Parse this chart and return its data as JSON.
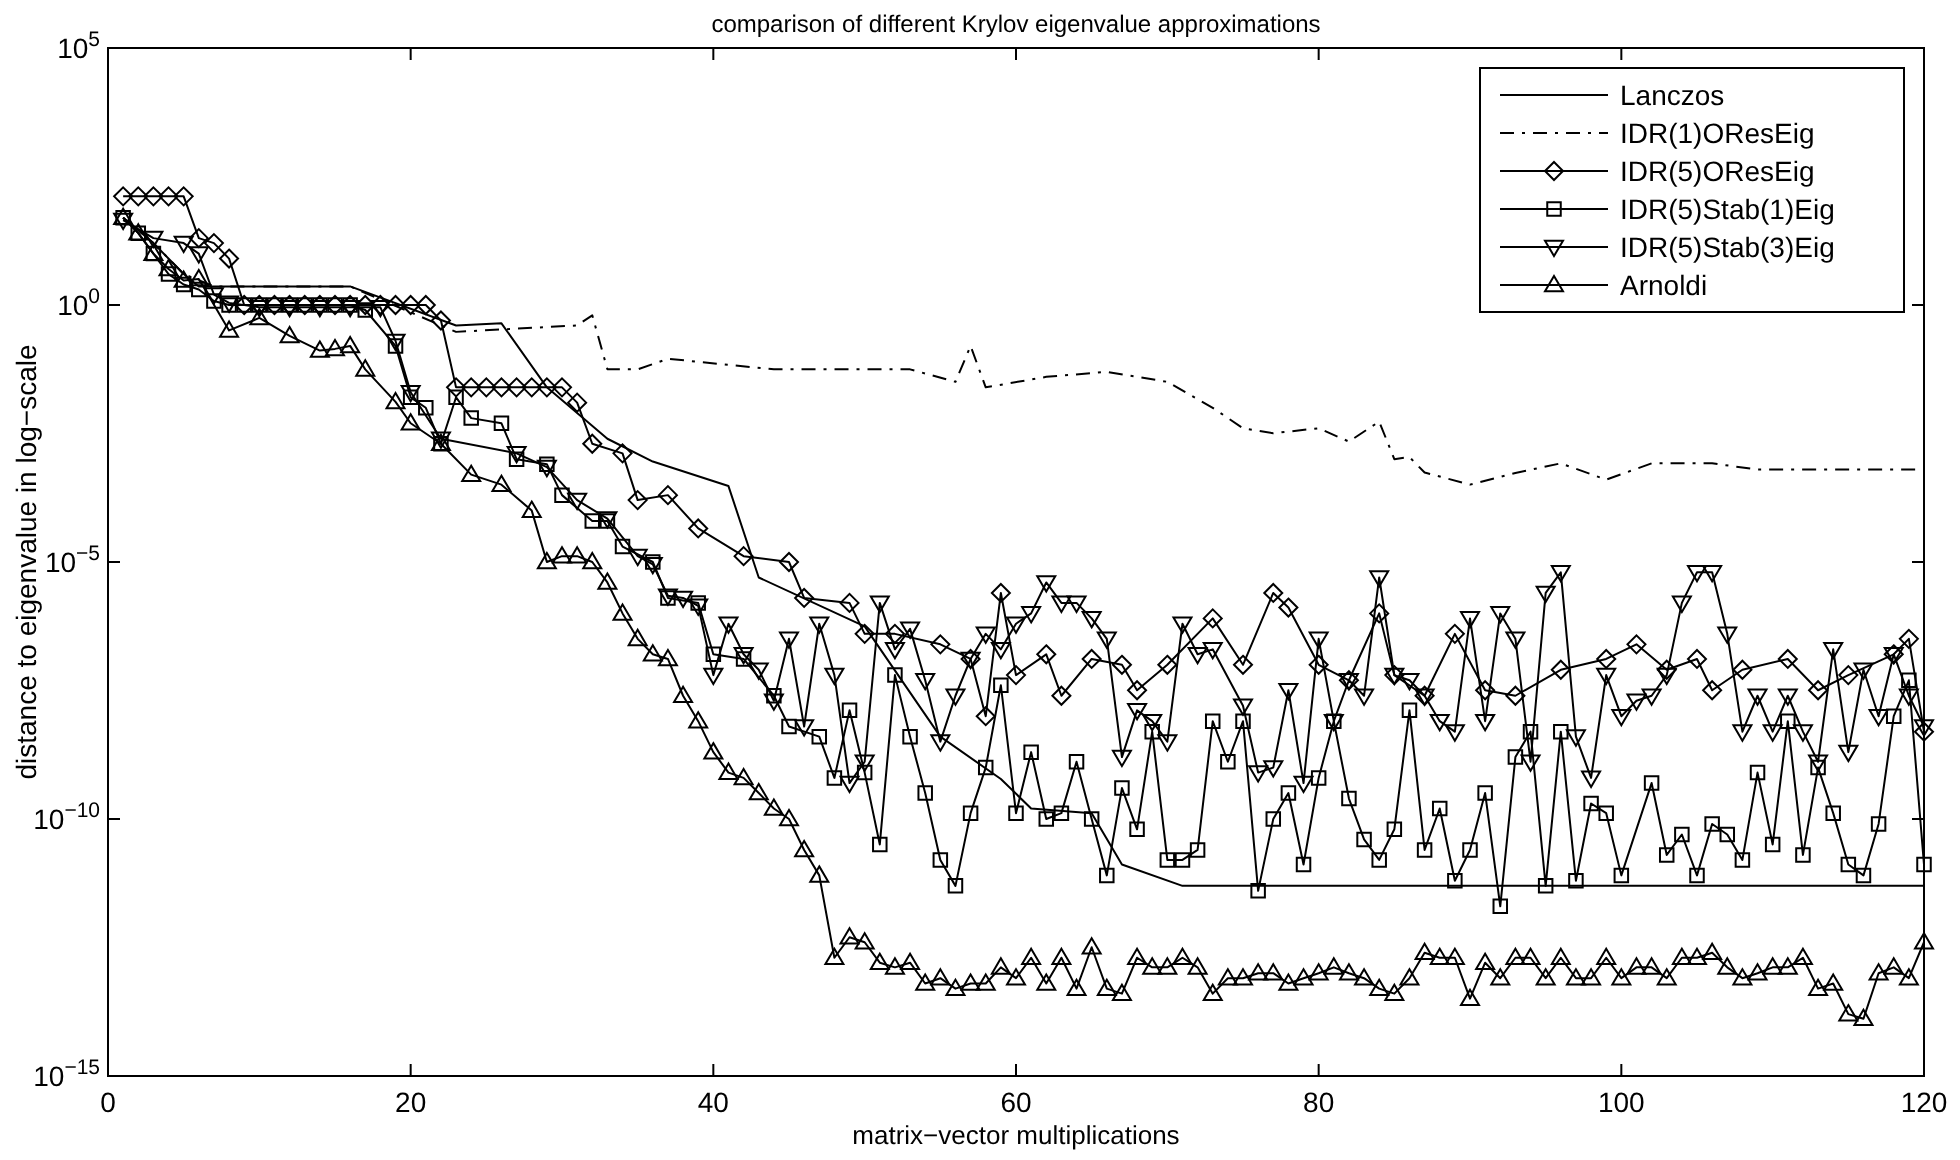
{
  "chart_data": {
    "type": "line",
    "title": "comparison of different Krylov eigenvalue approximations",
    "xlabel": "matrix−vector multiplications",
    "ylabel": "distance to eigenvalue in log−scale",
    "xlim": [
      0,
      120
    ],
    "xticks": [
      0,
      20,
      40,
      60,
      80,
      100,
      120
    ],
    "ylim": [
      1e-15,
      100000
    ],
    "yticks": [
      {
        "value": 1e-15,
        "label": "10$^{−15}$"
      },
      {
        "value": 1e-10,
        "label": "10$^{−10}$"
      },
      {
        "value": 1e-05,
        "label": "10$^{−5}$"
      },
      {
        "value": 1,
        "label": "10$^{0}$"
      },
      {
        "value": 100000,
        "label": "10$^{5}$"
      }
    ],
    "log": "y",
    "grid": false,
    "legend": "top right",
    "series": [
      {
        "name": "Lanczos",
        "color": "#000000",
        "marker": "none",
        "line_style": "solid",
        "x": [
          1,
          3,
          5,
          6,
          16,
          23,
          26,
          29,
          33,
          36,
          41,
          43,
          50,
          55,
          59,
          61,
          65,
          67,
          71,
          120
        ],
        "values": [
          50,
          16,
          4,
          2.3,
          2.3,
          0.4,
          0.44,
          0.025,
          0.0025,
          0.0009,
          0.0003,
          5e-06,
          5.6e-07,
          4e-09,
          6e-10,
          1.6e-10,
          1.3e-10,
          1.3e-11,
          5e-12,
          5e-12
        ]
      },
      {
        "name": "IDR(1)OResEig",
        "color": "#000000",
        "marker": "none",
        "line_style": "dashed",
        "x": [
          1,
          3,
          5,
          7,
          16,
          23,
          31,
          32,
          33,
          35,
          37,
          44,
          49,
          53,
          56,
          57,
          58,
          62,
          66,
          70,
          73,
          75,
          77,
          80,
          82,
          84,
          85,
          86,
          87,
          90,
          93,
          96,
          99,
          102,
          106,
          109,
          120
        ],
        "values": [
          50,
          16,
          4,
          2.3,
          2.3,
          0.3,
          0.4,
          0.63,
          0.056,
          0.056,
          0.09,
          0.056,
          0.056,
          0.056,
          0.032,
          0.16,
          0.025,
          0.04,
          0.05,
          0.032,
          0.01,
          0.004,
          0.0032,
          0.004,
          0.0022,
          0.0054,
          0.001,
          0.0011,
          0.00055,
          0.00032,
          0.00054,
          0.00083,
          0.0004,
          0.00083,
          0.00083,
          0.00063,
          0.00063
        ]
      },
      {
        "name": "IDR(5)OResEig",
        "color": "#000000",
        "marker": "diamond",
        "line_style": "solid",
        "x": [
          1,
          2,
          3,
          4,
          5,
          6,
          7,
          8,
          9,
          10,
          11,
          12,
          13,
          14,
          15,
          16,
          17,
          18,
          19,
          20,
          21,
          22,
          23,
          24,
          25,
          26,
          27,
          28,
          29,
          30,
          31,
          32,
          34,
          35,
          37,
          39,
          42,
          45,
          46,
          49,
          50,
          52,
          55,
          57,
          58,
          59,
          60,
          62,
          63,
          65,
          67,
          68,
          70,
          73,
          75,
          77,
          78,
          80,
          82,
          84,
          85,
          87,
          89,
          91,
          93,
          96,
          99,
          101,
          103,
          105,
          106,
          108,
          111,
          113,
          115,
          118,
          119,
          120
        ],
        "values": [
          130,
          130,
          130,
          130,
          130,
          20,
          16,
          8,
          1,
          1,
          1,
          1,
          1,
          1,
          1,
          1,
          1,
          1,
          1,
          1,
          1,
          0.5,
          0.025,
          0.025,
          0.025,
          0.025,
          0.025,
          0.025,
          0.025,
          0.025,
          0.0126,
          0.002,
          0.0013,
          0.00016,
          0.0002,
          4.5e-05,
          1.3e-05,
          1e-05,
          2e-06,
          1.6e-06,
          4e-07,
          4e-07,
          2.5e-07,
          1.3e-07,
          1e-08,
          2.5e-06,
          6.3e-08,
          1.6e-07,
          2.5e-08,
          1.3e-07,
          1e-07,
          3.2e-08,
          1e-07,
          8e-07,
          1e-07,
          2.5e-06,
          1.3e-06,
          1e-07,
          5e-08,
          1e-06,
          6.3e-08,
          2.5e-08,
          4e-07,
          3.2e-08,
          2.5e-08,
          8e-08,
          1.3e-07,
          2.5e-07,
          8e-08,
          1.3e-07,
          3.2e-08,
          8e-08,
          1.3e-07,
          3.2e-08,
          6.3e-08,
          1.6e-07,
          3.2e-07,
          5e-09
        ]
      },
      {
        "name": "IDR(5)Stab(1)Eig",
        "color": "#000000",
        "marker": "square",
        "line_style": "solid",
        "x": [
          1,
          2,
          3,
          4,
          5,
          6,
          7,
          8,
          9,
          10,
          11,
          12,
          13,
          14,
          15,
          16,
          17,
          19,
          20,
          21,
          22,
          23,
          24,
          26,
          27,
          29,
          30,
          32,
          33,
          34,
          36,
          37,
          39,
          40,
          42,
          44,
          45,
          47,
          48,
          49,
          50,
          51,
          52,
          53,
          54,
          55,
          56,
          57,
          58,
          59,
          60,
          61,
          62,
          63,
          64,
          65,
          66,
          67,
          68,
          69,
          70,
          71,
          72,
          73,
          74,
          75,
          76,
          77,
          78,
          79,
          80,
          81,
          82,
          83,
          84,
          85,
          86,
          87,
          88,
          89,
          90,
          91,
          92,
          93,
          94,
          95,
          96,
          97,
          98,
          99,
          100,
          102,
          103,
          104,
          105,
          106,
          107,
          108,
          109,
          110,
          111,
          112,
          113,
          114,
          115,
          116,
          117,
          118,
          119,
          120
        ],
        "values": [
          50,
          25,
          10,
          4,
          2.5,
          2,
          1.2,
          1,
          1,
          1,
          1,
          1,
          1,
          1,
          1,
          1,
          0.8,
          0.16,
          0.016,
          0.01,
          0.002,
          0.016,
          0.0063,
          0.005,
          0.001,
          0.0008,
          0.0002,
          6.3e-05,
          6.3e-05,
          2e-05,
          1e-05,
          2e-06,
          1.6e-06,
          1.6e-07,
          1.3e-07,
          2.5e-08,
          6.3e-09,
          4e-09,
          6.3e-10,
          1.3e-08,
          8e-10,
          3.2e-11,
          6.3e-08,
          4e-09,
          3.2e-10,
          1.6e-11,
          5e-12,
          1.3e-10,
          1e-09,
          4e-08,
          1.3e-10,
          2e-09,
          1e-10,
          1.3e-10,
          1.3e-09,
          1e-10,
          8e-12,
          4e-10,
          6.3e-11,
          5e-09,
          1.6e-11,
          1.6e-11,
          2.5e-11,
          8e-09,
          1.3e-09,
          8e-09,
          4e-12,
          1e-10,
          3.2e-10,
          1.3e-11,
          6.3e-10,
          8e-09,
          2.5e-10,
          4e-11,
          1.6e-11,
          6.3e-11,
          1.3e-08,
          2.5e-11,
          1.6e-10,
          6.3e-12,
          2.5e-11,
          3.2e-10,
          2e-12,
          1.6e-09,
          5e-09,
          5e-12,
          5e-09,
          6.3e-12,
          2e-10,
          1.3e-10,
          8e-12,
          5e-10,
          2e-11,
          5e-11,
          8e-12,
          8e-11,
          5e-11,
          1.6e-11,
          8e-10,
          3.2e-11,
          8e-09,
          2e-11,
          1e-09,
          1.3e-10,
          1.3e-11,
          8e-12,
          8e-11,
          1e-08,
          5e-08,
          1.3e-11
        ]
      },
      {
        "name": "IDR(5)Stab(3)Eig",
        "color": "#000000",
        "marker": "triangle-down",
        "line_style": "solid",
        "x": [
          1,
          3,
          5,
          6,
          7,
          8,
          10,
          12,
          14,
          16,
          18,
          19,
          20,
          22,
          27,
          29,
          31,
          33,
          35,
          36,
          37,
          38,
          39,
          40,
          41,
          42,
          43,
          44,
          45,
          46,
          47,
          48,
          49,
          50,
          51,
          52,
          53,
          54,
          55,
          56,
          57,
          58,
          59,
          60,
          61,
          62,
          63,
          64,
          65,
          66,
          67,
          68,
          69,
          70,
          71,
          72,
          73,
          75,
          76,
          77,
          78,
          79,
          80,
          81,
          82,
          83,
          84,
          85,
          86,
          87,
          88,
          89,
          90,
          91,
          92,
          93,
          94,
          95,
          96,
          97,
          98,
          99,
          100,
          101,
          102,
          103,
          104,
          105,
          106,
          107,
          108,
          109,
          110,
          111,
          112,
          113,
          114,
          115,
          116,
          117,
          118,
          119,
          120
        ],
        "values": [
          45,
          20,
          16,
          10,
          1.6,
          1.1,
          0.9,
          0.9,
          0.9,
          0.9,
          0.9,
          0.2,
          0.02,
          0.0025,
          0.0013,
          0.0007,
          0.00016,
          7e-05,
          1.3e-05,
          9e-06,
          2.2e-06,
          2e-06,
          1.4e-06,
          6.3e-08,
          6.3e-07,
          1.6e-07,
          8e-08,
          2e-08,
          3.2e-07,
          6.3e-09,
          6.3e-07,
          6.3e-08,
          5e-10,
          1.3e-09,
          1.6e-06,
          2e-07,
          5e-07,
          5e-08,
          3.2e-09,
          2.5e-08,
          1.3e-07,
          4e-07,
          2e-07,
          6.3e-07,
          1e-06,
          4e-06,
          1.6e-06,
          1.6e-06,
          8e-07,
          3.2e-07,
          1.6e-09,
          1.3e-08,
          8e-09,
          3.2e-09,
          6.3e-07,
          1.6e-07,
          2e-07,
          1.6e-08,
          8e-10,
          1e-09,
          3.2e-08,
          5e-10,
          3.2e-07,
          8e-09,
          5e-08,
          2.5e-08,
          5e-06,
          6.3e-08,
          5e-08,
          2.5e-08,
          8e-09,
          5e-09,
          8e-07,
          8e-09,
          1e-06,
          3.2e-07,
          1.3e-09,
          2.5e-06,
          6.3e-06,
          4e-09,
          6.3e-10,
          6.3e-08,
          1e-08,
          2e-08,
          2.5e-08,
          6.3e-08,
          1.6e-06,
          6.3e-06,
          6.3e-06,
          4e-07,
          5e-09,
          2.5e-08,
          5e-09,
          2.5e-08,
          5e-09,
          1.3e-09,
          2e-07,
          2e-09,
          8e-08,
          1e-08,
          1.6e-07,
          2.5e-08,
          6.3e-09
        ]
      },
      {
        "name": "Arnoldi",
        "color": "#000000",
        "marker": "triangle",
        "line_style": "solid",
        "x": [
          1,
          2,
          3,
          4,
          5,
          6,
          8,
          10,
          12,
          14,
          15,
          16,
          17,
          19,
          20,
          22,
          24,
          26,
          28,
          29,
          30,
          31,
          32,
          33,
          34,
          35,
          36,
          37,
          38,
          39,
          40,
          41,
          42,
          43,
          44,
          45,
          46,
          47,
          48,
          49,
          50,
          51,
          52,
          53,
          54,
          55,
          56,
          57,
          58,
          59,
          60,
          61,
          62,
          63,
          64,
          65,
          66,
          67,
          68,
          69,
          70,
          71,
          72,
          73,
          74,
          75,
          76,
          77,
          78,
          79,
          80,
          81,
          82,
          83,
          84,
          85,
          86,
          87,
          88,
          89,
          90,
          91,
          92,
          93,
          94,
          95,
          96,
          97,
          98,
          99,
          100,
          101,
          102,
          103,
          104,
          105,
          106,
          107,
          108,
          109,
          110,
          111,
          112,
          113,
          114,
          115,
          116,
          117,
          118,
          119,
          120
        ],
        "values": [
          50,
          25,
          10,
          5,
          3,
          3.2,
          0.32,
          0.56,
          0.25,
          0.13,
          0.14,
          0.16,
          0.056,
          0.013,
          0.005,
          0.002,
          0.0005,
          0.00032,
          0.0001,
          1e-05,
          1.3e-05,
          1.3e-05,
          1e-05,
          4e-06,
          1e-06,
          3.2e-07,
          1.6e-07,
          1.3e-07,
          2.5e-08,
          8e-09,
          2e-09,
          8e-10,
          6.3e-10,
          3.2e-10,
          1.6e-10,
          1e-10,
          2.5e-11,
          8e-12,
          2e-13,
          5e-13,
          4e-13,
          1.6e-13,
          1.3e-13,
          1.6e-13,
          6.3e-14,
          8e-14,
          5e-14,
          6.3e-14,
          6.3e-14,
          1.3e-13,
          8e-14,
          2e-13,
          6.3e-14,
          2e-13,
          5e-14,
          3.2e-13,
          5e-14,
          4e-14,
          2e-13,
          1.3e-13,
          1.3e-13,
          2e-13,
          1.3e-13,
          4e-14,
          8e-14,
          8e-14,
          1e-13,
          1e-13,
          6.3e-14,
          8e-14,
          1e-13,
          1.3e-13,
          1e-13,
          8e-14,
          5e-14,
          4e-14,
          8e-14,
          2.5e-13,
          2e-13,
          2e-13,
          3.2e-14,
          1.6e-13,
          8e-14,
          2e-13,
          2e-13,
          8e-14,
          2e-13,
          8e-14,
          8e-14,
          2e-13,
          8e-14,
          1.3e-13,
          1.3e-13,
          8e-14,
          2e-13,
          2e-13,
          2.5e-13,
          1.3e-13,
          8e-14,
          1e-13,
          1.3e-13,
          1.3e-13,
          2e-13,
          5e-14,
          6.3e-14,
          1.6e-14,
          1.3e-14,
          1e-13,
          1.3e-13,
          8e-14,
          4e-13
        ]
      }
    ]
  }
}
